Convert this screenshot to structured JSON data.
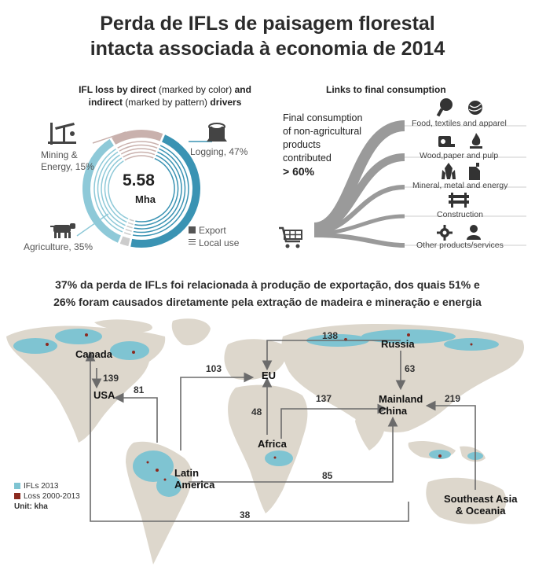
{
  "title": {
    "line1": "Perda de IFLs de paisagem florestal",
    "line2": "intacta associada à economia de 2014"
  },
  "left_panel": {
    "heading_line1_bold": "IFL loss by direct",
    "heading_line1_light": "(marked by color)",
    "heading_line1_and": "and",
    "heading_line2_bold": "indirect",
    "heading_line2_light": "(marked by pattern)",
    "heading_line2_end": "drivers",
    "center_value": "5.58",
    "center_unit": "Mha",
    "drivers": [
      {
        "label_line1": "Mining &",
        "label_line2": "Energy, 15%",
        "share": 15,
        "icon": "oil-pump-icon"
      },
      {
        "label_line1": "Logging, 47%",
        "label_line2": "",
        "share": 47,
        "icon": "tree-stump-icon"
      },
      {
        "label_line1": "Agriculture, 35%",
        "label_line2": "",
        "share": 35,
        "icon": "cow-icon"
      }
    ],
    "legend": {
      "export": "Export",
      "local_use": "Local use"
    },
    "colors": {
      "logging": "#3a93b3",
      "mining": "#c9b1ad",
      "agriculture": "#8ec9d8",
      "other": "#cccccc"
    }
  },
  "right_panel": {
    "heading": "Links to final consumption",
    "text_line1": "Final consumption",
    "text_line2": "of non-agricultural",
    "text_line3": "products",
    "text_line4": "contributed",
    "text_big": "> 60%",
    "categories": [
      {
        "label": "Food, textiles and apparel",
        "icons": [
          "meat-icon",
          "yarn-icon"
        ]
      },
      {
        "label": "Wood,paper and pulp",
        "icons": [
          "paper-roll-icon",
          "fire-icon"
        ]
      },
      {
        "label": "Mineral, metal and energy",
        "icons": [
          "crystal-icon",
          "fuel-can-icon"
        ]
      },
      {
        "label": "Construction",
        "icons": [
          "barrier-icon"
        ]
      },
      {
        "label": "Other products/services",
        "icons": [
          "gear-icon",
          "person-icon"
        ]
      }
    ],
    "cart_icon": "shopping-cart-icon"
  },
  "headline": {
    "line1": "37% da perda de IFLs foi relacionada à produção de exportação, dos quais 51% e",
    "line2": "26% foram causados diretamente pela extração de madeira e mineração e energia"
  },
  "map": {
    "regions": {
      "canada": "Canada",
      "usa": "USA",
      "eu": "EU",
      "russia": "Russia",
      "china_line1": "Mainland",
      "china_line2": "China",
      "africa": "Africa",
      "latam_line1": "Latin",
      "latam_line2": "America",
      "sea_line1": "Southeast Asia",
      "sea_line2": "& Oceania"
    },
    "flows": [
      {
        "from": "Russia",
        "to": "EU",
        "value": "138"
      },
      {
        "from": "Latin America",
        "to": "EU",
        "value": "103"
      },
      {
        "from": "Canada",
        "to": "USA",
        "value": "139"
      },
      {
        "from": "Latin America",
        "to": "USA",
        "value": "81"
      },
      {
        "from": "Russia",
        "to": "Mainland China",
        "value": "63"
      },
      {
        "from": "Africa",
        "to": "Mainland China",
        "value": "137"
      },
      {
        "from": "Southeast Asia & Oceania",
        "to": "Mainland China",
        "value": "219"
      },
      {
        "from": "Africa",
        "to": "EU",
        "value": "48"
      },
      {
        "from": "Latin America",
        "to": "Mainland China",
        "value": "85"
      },
      {
        "from": "Southeast Asia & Oceania",
        "to": "Canada",
        "value": "38"
      }
    ],
    "legend": {
      "ifl": "IFLs 2013",
      "loss": "Loss 2000-2013",
      "unit": "Unit: kha"
    },
    "colors": {
      "land": "#ddd7cc",
      "ifl": "#7fc4d2",
      "loss": "#8b2a1f",
      "arrow": "#6b6b6b"
    }
  }
}
